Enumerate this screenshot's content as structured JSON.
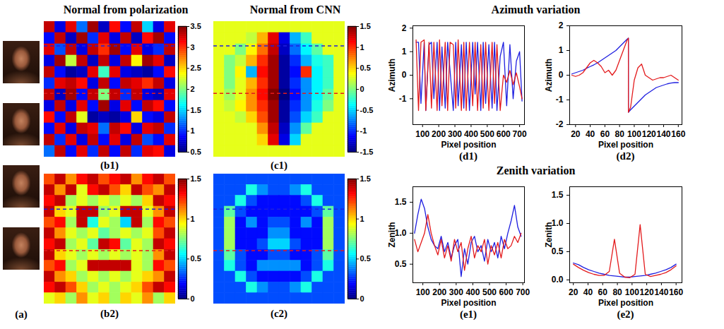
{
  "chart_data": [
    {
      "type": "image",
      "label": "(a)",
      "count": 4
    },
    {
      "type": "heatmap",
      "title": "Normal from polarization",
      "label": "(b1)",
      "colorbar": {
        "range": [
          0.5,
          3.5
        ],
        "ticks": [
          0.5,
          1,
          1.5,
          2,
          2.5,
          3,
          3.5
        ]
      },
      "cells": [
        [
          3.3,
          0.8,
          3.2,
          1.2,
          3.4,
          0.7,
          3.1,
          0.9,
          3.3,
          1.5,
          0.8,
          3.2
        ],
        [
          0.9,
          3.3,
          0.7,
          3.4,
          1.0,
          3.2,
          0.8,
          3.3,
          0.7,
          3.1,
          3.4,
          0.9
        ],
        [
          3.2,
          1.1,
          3.3,
          0.8,
          3.3,
          3.0,
          3.4,
          0.9,
          3.2,
          0.8,
          1.0,
          3.3
        ],
        [
          0.8,
          3.4,
          2.2,
          3.3,
          0.7,
          3.3,
          0.8,
          3.3,
          2.4,
          3.4,
          3.2,
          0.7
        ],
        [
          3.3,
          0.9,
          0.6,
          0.7,
          3.2,
          1.8,
          3.2,
          0.8,
          0.7,
          0.6,
          0.9,
          3.1
        ],
        [
          1.0,
          3.2,
          3.3,
          3.1,
          0.8,
          3.3,
          0.9,
          3.3,
          3.2,
          3.0,
          3.3,
          0.8
        ],
        [
          3.3,
          0.7,
          3.4,
          0.9,
          3.3,
          2.0,
          3.3,
          1.0,
          3.3,
          0.8,
          0.7,
          3.2
        ],
        [
          0.8,
          3.3,
          0.8,
          3.2,
          0.9,
          3.4,
          0.8,
          3.2,
          0.9,
          3.3,
          3.1,
          0.9
        ],
        [
          3.1,
          0.9,
          3.3,
          2.3,
          0.6,
          0.7,
          0.6,
          0.8,
          2.5,
          0.9,
          0.8,
          3.3
        ],
        [
          0.9,
          3.2,
          0.8,
          3.3,
          3.2,
          1.2,
          3.3,
          3.1,
          0.8,
          3.2,
          3.3,
          1.0
        ],
        [
          3.3,
          1.0,
          3.2,
          0.8,
          3.3,
          0.9,
          3.2,
          0.8,
          3.3,
          1.1,
          0.9,
          3.2
        ],
        [
          1.2,
          3.3,
          0.9,
          3.2,
          1.0,
          3.3,
          0.9,
          3.3,
          1.0,
          3.2,
          3.1,
          0.8
        ]
      ]
    },
    {
      "type": "heatmap",
      "label": "(b2)",
      "colorbar": {
        "range": [
          0,
          1.5
        ],
        "ticks": [
          0,
          0.5,
          1,
          1.5
        ]
      },
      "cells": [
        [
          1.2,
          1.4,
          1.1,
          1.3,
          1.4,
          1.2,
          1.3,
          1.4,
          1.1,
          1.3,
          1.4,
          1.2
        ],
        [
          1.4,
          1.1,
          1.4,
          0.9,
          1.3,
          1.4,
          1.2,
          1.0,
          1.4,
          1.2,
          1.1,
          1.4
        ],
        [
          1.3,
          1.4,
          0.8,
          0.9,
          0.8,
          0.9,
          0.8,
          0.9,
          0.8,
          1.0,
          1.4,
          1.3
        ],
        [
          1.4,
          1.0,
          0.9,
          1.4,
          1.4,
          0.8,
          0.9,
          1.4,
          1.4,
          0.9,
          1.1,
          1.4
        ],
        [
          1.2,
          1.3,
          0.8,
          1.4,
          0.6,
          0.9,
          0.8,
          0.5,
          1.4,
          0.8,
          1.3,
          1.2
        ],
        [
          1.4,
          1.1,
          0.9,
          0.8,
          0.9,
          0.7,
          0.8,
          0.9,
          0.8,
          0.9,
          1.2,
          1.4
        ],
        [
          1.3,
          1.4,
          0.8,
          0.9,
          0.7,
          1.4,
          1.3,
          0.7,
          0.9,
          0.8,
          1.4,
          1.3
        ],
        [
          1.4,
          1.0,
          0.9,
          0.8,
          0.9,
          0.8,
          0.9,
          0.8,
          0.9,
          0.8,
          1.1,
          1.4
        ],
        [
          1.2,
          1.3,
          0.8,
          0.9,
          1.4,
          1.4,
          1.4,
          1.4,
          0.9,
          0.8,
          1.3,
          1.2
        ],
        [
          1.4,
          1.1,
          1.0,
          0.8,
          0.9,
          0.8,
          0.9,
          0.8,
          0.9,
          1.0,
          1.1,
          1.4
        ],
        [
          1.3,
          1.4,
          1.2,
          1.0,
          0.8,
          0.9,
          0.8,
          0.9,
          1.0,
          1.2,
          1.4,
          1.3
        ],
        [
          0.9,
          1.0,
          0.8,
          1.1,
          0.9,
          1.0,
          0.8,
          1.0,
          0.9,
          1.1,
          0.8,
          1.0
        ]
      ]
    },
    {
      "type": "heatmap",
      "title": "Normal from CNN",
      "label": "(c1)",
      "colorbar": {
        "range": [
          -1.5,
          1.5
        ],
        "ticks": [
          -1.5,
          -1,
          -0.5,
          0,
          0.5,
          1,
          1.5
        ]
      },
      "cells": [
        [
          0.3,
          0.3,
          0.3,
          0.3,
          0.3,
          0.3,
          0.3,
          0.3,
          0.3,
          0.3,
          0.3,
          0.3
        ],
        [
          0.3,
          0.3,
          0.3,
          0.2,
          0.6,
          1.2,
          -1.2,
          -0.6,
          -0.2,
          0.3,
          0.3,
          0.3
        ],
        [
          0.3,
          0.3,
          0.0,
          0.4,
          0.8,
          1.3,
          -1.3,
          -0.8,
          -0.4,
          -0.1,
          0.3,
          0.3
        ],
        [
          0.3,
          0.0,
          0.2,
          0.6,
          1.0,
          1.4,
          -1.4,
          -1.0,
          -0.6,
          -0.3,
          -0.2,
          0.3
        ],
        [
          0.3,
          0.0,
          0.4,
          -0.6,
          1.1,
          1.4,
          -1.4,
          -1.1,
          1.0,
          -0.4,
          -0.2,
          0.3
        ],
        [
          0.3,
          0.0,
          0.3,
          0.6,
          1.0,
          1.4,
          -1.4,
          -1.0,
          -0.7,
          -0.4,
          -0.2,
          0.3
        ],
        [
          0.3,
          0.1,
          0.3,
          0.7,
          1.1,
          1.5,
          -1.5,
          -1.1,
          -0.7,
          -0.4,
          -0.1,
          0.3
        ],
        [
          0.3,
          0.2,
          0.4,
          0.7,
          1.0,
          1.4,
          -1.4,
          -1.0,
          -0.7,
          -0.3,
          0.0,
          0.3
        ],
        [
          0.3,
          0.3,
          0.2,
          0.5,
          0.9,
          1.4,
          -1.4,
          -0.9,
          -0.5,
          -0.2,
          0.3,
          0.3
        ],
        [
          0.3,
          0.3,
          0.3,
          0.3,
          0.7,
          1.3,
          -1.3,
          -0.7,
          -0.1,
          0.3,
          0.3,
          0.3
        ],
        [
          0.3,
          0.3,
          0.3,
          0.3,
          0.5,
          1.2,
          -1.2,
          -0.5,
          0.3,
          0.3,
          0.3,
          0.3
        ],
        [
          0.3,
          0.3,
          0.3,
          0.3,
          0.3,
          0.3,
          0.3,
          0.3,
          0.3,
          0.3,
          0.3,
          0.3
        ]
      ]
    },
    {
      "type": "heatmap",
      "label": "(c2)",
      "colorbar": {
        "range": [
          0,
          1.5
        ],
        "ticks": [
          0,
          0.5,
          1,
          1.5
        ]
      },
      "cells": [
        [
          0.3,
          0.3,
          0.3,
          0.3,
          0.3,
          0.3,
          0.3,
          0.3,
          0.3,
          0.3,
          0.3,
          0.3
        ],
        [
          0.3,
          0.3,
          0.3,
          0.6,
          0.4,
          0.3,
          0.3,
          0.4,
          0.6,
          0.3,
          0.3,
          0.3
        ],
        [
          0.3,
          0.3,
          0.6,
          0.3,
          0.2,
          0.2,
          0.2,
          0.2,
          0.3,
          0.6,
          0.3,
          0.3
        ],
        [
          0.3,
          0.7,
          0.3,
          0.2,
          0.2,
          0.2,
          0.2,
          0.2,
          0.2,
          0.3,
          0.7,
          0.3
        ],
        [
          0.3,
          0.8,
          0.2,
          0.4,
          0.2,
          0.3,
          0.3,
          0.2,
          0.4,
          0.2,
          0.8,
          0.3
        ],
        [
          0.3,
          0.8,
          0.2,
          0.2,
          0.2,
          0.4,
          0.4,
          0.2,
          0.2,
          0.2,
          0.8,
          0.3
        ],
        [
          0.3,
          0.8,
          0.2,
          0.2,
          0.3,
          0.5,
          0.5,
          0.3,
          0.2,
          0.2,
          0.8,
          0.3
        ],
        [
          0.3,
          0.7,
          0.3,
          0.2,
          0.2,
          0.3,
          0.3,
          0.2,
          0.2,
          0.3,
          0.7,
          0.3
        ],
        [
          0.3,
          0.6,
          0.3,
          0.2,
          0.4,
          0.4,
          0.4,
          0.4,
          0.2,
          0.3,
          0.6,
          0.3
        ],
        [
          0.3,
          0.3,
          0.6,
          0.3,
          0.2,
          0.2,
          0.2,
          0.2,
          0.3,
          0.6,
          0.3,
          0.3
        ],
        [
          0.3,
          0.3,
          0.3,
          0.6,
          0.4,
          0.3,
          0.3,
          0.4,
          0.6,
          0.3,
          0.3,
          0.3
        ],
        [
          0.3,
          0.3,
          0.3,
          0.3,
          0.3,
          0.3,
          0.3,
          0.3,
          0.3,
          0.3,
          0.3,
          0.3
        ]
      ]
    },
    {
      "type": "line",
      "title": "Azimuth variation",
      "label": "(d1)",
      "xlabel": "Pixel position",
      "ylabel": "Azimuth",
      "xlim": [
        40,
        730
      ],
      "ylim": [
        -2.1,
        2.1
      ],
      "xticks": [
        100,
        200,
        300,
        400,
        500,
        600,
        700
      ],
      "yticks": [
        -1,
        0,
        1,
        2
      ],
      "x": [
        60,
        75,
        90,
        110,
        120,
        140,
        155,
        170,
        190,
        205,
        220,
        240,
        255,
        270,
        290,
        305,
        320,
        340,
        355,
        370,
        390,
        410,
        425,
        440,
        460,
        475,
        490,
        510,
        530,
        545,
        560,
        580,
        600,
        620,
        640,
        660,
        680,
        700,
        715
      ],
      "series": [
        {
          "color": "#1f1fe0",
          "values": [
            1.4,
            1.4,
            -1.2,
            1.4,
            -1.5,
            1.3,
            1.4,
            -1.0,
            1.4,
            -1.5,
            1.2,
            -1.4,
            1.4,
            0.2,
            -1.5,
            1.4,
            -1.3,
            1.3,
            -1.4,
            1.4,
            -1.5,
            1.4,
            -0.8,
            1.4,
            -1.5,
            1.4,
            -1.2,
            1.3,
            -1.4,
            1.4,
            -1.5,
            0.8,
            1.4,
            -1.3,
            1.3,
            -1.0,
            0.6,
            1.0,
            -1.1
          ]
        },
        {
          "color": "#e31a1c",
          "values": [
            1.5,
            -1.5,
            1.4,
            1.5,
            -1.5,
            1.4,
            -1.4,
            1.4,
            -1.5,
            1.5,
            -1.3,
            1.4,
            -1.5,
            1.4,
            1.3,
            -1.4,
            1.5,
            -1.5,
            1.4,
            -1.5,
            1.4,
            -1.3,
            1.4,
            -1.5,
            1.3,
            -1.4,
            1.4,
            -1.5,
            1.4,
            -1.2,
            1.3,
            -1.5,
            0.0,
            -0.3,
            0.2,
            -0.4,
            0.1,
            -0.5,
            -1.0
          ]
        }
      ]
    },
    {
      "type": "line",
      "label": "(d2)",
      "xlabel": "Pixel position",
      "ylabel": "Azimuth",
      "xlim": [
        12,
        165
      ],
      "ylim": [
        -2,
        2
      ],
      "xticks": [
        20,
        40,
        60,
        80,
        100,
        120,
        140,
        160
      ],
      "yticks": [
        -2,
        -1,
        0,
        1,
        2
      ],
      "x": [
        15,
        20,
        25,
        30,
        35,
        40,
        45,
        50,
        55,
        60,
        65,
        70,
        75,
        80,
        85,
        90,
        92,
        92,
        95,
        100,
        105,
        110,
        115,
        120,
        125,
        130,
        135,
        140,
        145,
        150,
        155,
        160
      ],
      "series": [
        {
          "color": "#1f1fe0",
          "values": [
            0.05,
            0.1,
            0.15,
            0.2,
            0.28,
            0.35,
            0.42,
            0.5,
            0.6,
            0.7,
            0.8,
            0.9,
            1.0,
            1.15,
            1.3,
            1.45,
            1.5,
            -1.5,
            -1.4,
            -1.25,
            -1.1,
            -0.95,
            -0.8,
            -0.7,
            -0.6,
            -0.5,
            -0.45,
            -0.4,
            -0.35,
            -0.32,
            -0.3,
            -0.3
          ]
        },
        {
          "color": "#e31a1c",
          "values": [
            0.0,
            -0.05,
            0.0,
            0.1,
            0.3,
            0.5,
            0.6,
            0.5,
            0.35,
            0.1,
            0.2,
            0.0,
            0.2,
            0.6,
            1.0,
            1.4,
            1.5,
            -1.5,
            -1.3,
            -0.2,
            0.3,
            0.45,
            0.0,
            -0.1,
            -0.2,
            -0.15,
            -0.1,
            -0.1,
            -0.05,
            0.0,
            -0.1,
            -0.2
          ]
        }
      ]
    },
    {
      "type": "line",
      "title": "Zenith variation",
      "label": "(e1)",
      "xlabel": "Pixel position",
      "ylabel": "Zenith",
      "xlim": [
        40,
        710
      ],
      "ylim": [
        0.2,
        1.75
      ],
      "xticks": [
        100,
        200,
        300,
        400,
        500,
        600,
        700
      ],
      "yticks": [
        {
          "value": 0.5,
          "label": "0.5"
        },
        {
          "value": 1,
          "label": "1.0"
        },
        {
          "value": 1.5,
          "label": "1.5"
        }
      ],
      "x": [
        50,
        70,
        90,
        110,
        130,
        150,
        170,
        190,
        210,
        230,
        250,
        270,
        290,
        310,
        330,
        350,
        370,
        390,
        410,
        430,
        450,
        470,
        490,
        510,
        530,
        550,
        570,
        590,
        610,
        630,
        650,
        670,
        690
      ],
      "series": [
        {
          "color": "#1f1fe0",
          "values": [
            1.0,
            1.3,
            1.55,
            1.4,
            1.1,
            0.9,
            0.8,
            0.75,
            0.95,
            0.7,
            0.85,
            0.6,
            0.8,
            0.9,
            0.3,
            0.75,
            0.5,
            0.85,
            0.95,
            0.7,
            0.8,
            0.55,
            0.9,
            0.7,
            0.85,
            0.6,
            0.95,
            0.75,
            1.0,
            1.2,
            1.45,
            1.1,
            0.95
          ]
        },
        {
          "color": "#e31a1c",
          "values": [
            0.9,
            0.7,
            0.85,
            1.0,
            1.3,
            1.0,
            0.8,
            0.65,
            0.9,
            0.6,
            0.8,
            0.55,
            0.9,
            0.7,
            0.85,
            0.4,
            0.75,
            0.95,
            0.6,
            0.8,
            0.7,
            0.9,
            0.5,
            0.8,
            0.65,
            0.85,
            0.6,
            0.9,
            0.75,
            0.8,
            0.95,
            0.85,
            1.0
          ]
        }
      ]
    },
    {
      "type": "line",
      "label": "(e2)",
      "xlabel": "Pixel position",
      "ylabel": "Zenith",
      "xlim": [
        15,
        168
      ],
      "ylim": [
        -0.05,
        1.65
      ],
      "xticks": [
        20,
        40,
        60,
        80,
        100,
        120,
        140,
        160
      ],
      "yticks": [
        {
          "value": 0,
          "label": "0.0"
        },
        {
          "value": 0.5,
          "label": "0.5"
        },
        {
          "value": 1,
          "label": "1.0"
        },
        {
          "value": 1.5,
          "label": "1.5"
        }
      ],
      "x": [
        20,
        27,
        34,
        41,
        48,
        55,
        62,
        69,
        76,
        83,
        90,
        97,
        104,
        111,
        118,
        125,
        132,
        139,
        146,
        153,
        160
      ],
      "series": [
        {
          "color": "#1f1fe0",
          "values": [
            0.3,
            0.27,
            0.22,
            0.18,
            0.15,
            0.12,
            0.1,
            0.08,
            0.07,
            0.06,
            0.05,
            0.05,
            0.06,
            0.07,
            0.08,
            0.1,
            0.12,
            0.15,
            0.18,
            0.22,
            0.28
          ]
        },
        {
          "color": "#e31a1c",
          "values": [
            0.28,
            0.22,
            0.17,
            0.13,
            0.1,
            0.08,
            0.08,
            0.15,
            0.72,
            0.12,
            0.05,
            0.04,
            0.1,
            0.98,
            0.1,
            0.06,
            0.08,
            0.1,
            0.13,
            0.18,
            0.25
          ]
        }
      ]
    }
  ]
}
